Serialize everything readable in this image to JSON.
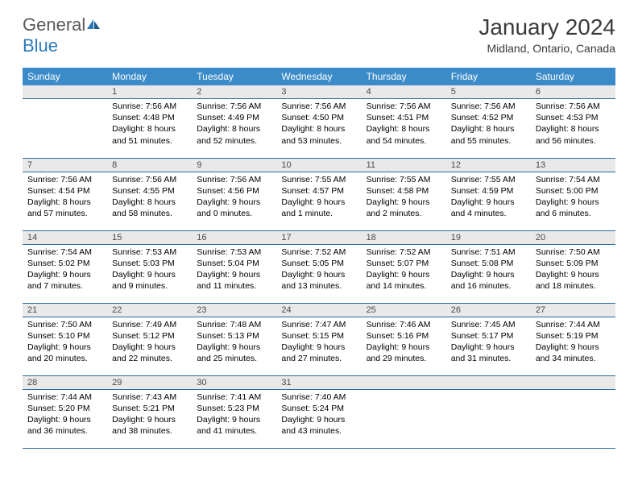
{
  "logo": {
    "text1": "General",
    "text2": "Blue"
  },
  "title": "January 2024",
  "location": "Midland, Ontario, Canada",
  "colors": {
    "header_bg": "#3b8bc8",
    "header_text": "#ffffff",
    "daynum_bg": "#e9e9e9",
    "border": "#2a6aa0",
    "logo_gray": "#5a5a5a",
    "logo_blue": "#2a7ab9"
  },
  "weekdays": [
    "Sunday",
    "Monday",
    "Tuesday",
    "Wednesday",
    "Thursday",
    "Friday",
    "Saturday"
  ],
  "first_weekday_index": 1,
  "days": [
    {
      "n": 1,
      "r": "7:56 AM",
      "s": "4:48 PM",
      "d": "8 hours and 51 minutes."
    },
    {
      "n": 2,
      "r": "7:56 AM",
      "s": "4:49 PM",
      "d": "8 hours and 52 minutes."
    },
    {
      "n": 3,
      "r": "7:56 AM",
      "s": "4:50 PM",
      "d": "8 hours and 53 minutes."
    },
    {
      "n": 4,
      "r": "7:56 AM",
      "s": "4:51 PM",
      "d": "8 hours and 54 minutes."
    },
    {
      "n": 5,
      "r": "7:56 AM",
      "s": "4:52 PM",
      "d": "8 hours and 55 minutes."
    },
    {
      "n": 6,
      "r": "7:56 AM",
      "s": "4:53 PM",
      "d": "8 hours and 56 minutes."
    },
    {
      "n": 7,
      "r": "7:56 AM",
      "s": "4:54 PM",
      "d": "8 hours and 57 minutes."
    },
    {
      "n": 8,
      "r": "7:56 AM",
      "s": "4:55 PM",
      "d": "8 hours and 58 minutes."
    },
    {
      "n": 9,
      "r": "7:56 AM",
      "s": "4:56 PM",
      "d": "9 hours and 0 minutes."
    },
    {
      "n": 10,
      "r": "7:55 AM",
      "s": "4:57 PM",
      "d": "9 hours and 1 minute."
    },
    {
      "n": 11,
      "r": "7:55 AM",
      "s": "4:58 PM",
      "d": "9 hours and 2 minutes."
    },
    {
      "n": 12,
      "r": "7:55 AM",
      "s": "4:59 PM",
      "d": "9 hours and 4 minutes."
    },
    {
      "n": 13,
      "r": "7:54 AM",
      "s": "5:00 PM",
      "d": "9 hours and 6 minutes."
    },
    {
      "n": 14,
      "r": "7:54 AM",
      "s": "5:02 PM",
      "d": "9 hours and 7 minutes."
    },
    {
      "n": 15,
      "r": "7:53 AM",
      "s": "5:03 PM",
      "d": "9 hours and 9 minutes."
    },
    {
      "n": 16,
      "r": "7:53 AM",
      "s": "5:04 PM",
      "d": "9 hours and 11 minutes."
    },
    {
      "n": 17,
      "r": "7:52 AM",
      "s": "5:05 PM",
      "d": "9 hours and 13 minutes."
    },
    {
      "n": 18,
      "r": "7:52 AM",
      "s": "5:07 PM",
      "d": "9 hours and 14 minutes."
    },
    {
      "n": 19,
      "r": "7:51 AM",
      "s": "5:08 PM",
      "d": "9 hours and 16 minutes."
    },
    {
      "n": 20,
      "r": "7:50 AM",
      "s": "5:09 PM",
      "d": "9 hours and 18 minutes."
    },
    {
      "n": 21,
      "r": "7:50 AM",
      "s": "5:10 PM",
      "d": "9 hours and 20 minutes."
    },
    {
      "n": 22,
      "r": "7:49 AM",
      "s": "5:12 PM",
      "d": "9 hours and 22 minutes."
    },
    {
      "n": 23,
      "r": "7:48 AM",
      "s": "5:13 PM",
      "d": "9 hours and 25 minutes."
    },
    {
      "n": 24,
      "r": "7:47 AM",
      "s": "5:15 PM",
      "d": "9 hours and 27 minutes."
    },
    {
      "n": 25,
      "r": "7:46 AM",
      "s": "5:16 PM",
      "d": "9 hours and 29 minutes."
    },
    {
      "n": 26,
      "r": "7:45 AM",
      "s": "5:17 PM",
      "d": "9 hours and 31 minutes."
    },
    {
      "n": 27,
      "r": "7:44 AM",
      "s": "5:19 PM",
      "d": "9 hours and 34 minutes."
    },
    {
      "n": 28,
      "r": "7:44 AM",
      "s": "5:20 PM",
      "d": "9 hours and 36 minutes."
    },
    {
      "n": 29,
      "r": "7:43 AM",
      "s": "5:21 PM",
      "d": "9 hours and 38 minutes."
    },
    {
      "n": 30,
      "r": "7:41 AM",
      "s": "5:23 PM",
      "d": "9 hours and 41 minutes."
    },
    {
      "n": 31,
      "r": "7:40 AM",
      "s": "5:24 PM",
      "d": "9 hours and 43 minutes."
    }
  ],
  "labels": {
    "sunrise": "Sunrise:",
    "sunset": "Sunset:",
    "daylight": "Daylight:"
  }
}
